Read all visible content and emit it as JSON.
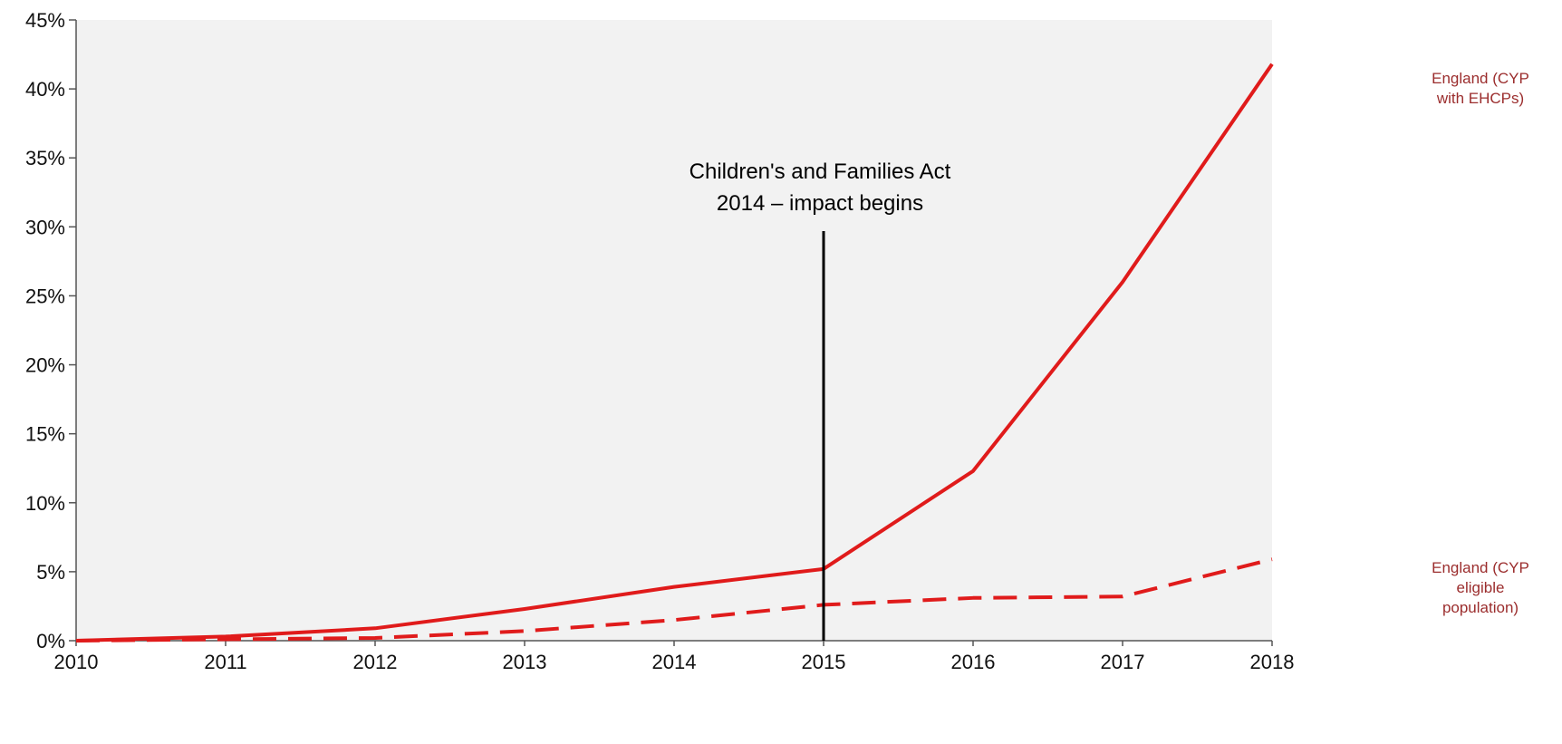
{
  "chart_data": {
    "type": "line",
    "x": [
      2010,
      2011,
      2012,
      2013,
      2014,
      2015,
      2016,
      2017,
      2018
    ],
    "xlim": [
      2010,
      2018
    ],
    "ylim": [
      0,
      45
    ],
    "y_ticks": [
      0,
      5,
      10,
      15,
      20,
      25,
      30,
      35,
      40,
      45
    ],
    "y_tick_labels": [
      "0%",
      "5%",
      "10%",
      "15%",
      "20%",
      "25%",
      "30%",
      "35%",
      "40%",
      "45%"
    ],
    "x_tick_labels": [
      "2010",
      "2011",
      "2012",
      "2013",
      "2014",
      "2015",
      "2016",
      "2017",
      "2018"
    ],
    "grid": false,
    "series": [
      {
        "label_lines": [
          "England (CYP",
          "with EHCPs)"
        ],
        "values": [
          0,
          0.3,
          0.9,
          2.3,
          3.9,
          5.2,
          12.3,
          26.0,
          41.8
        ],
        "style": "solid",
        "color": "#e01b1b"
      },
      {
        "label_lines": [
          "England (CYP",
          "eligible",
          "population)"
        ],
        "values": [
          0,
          0.1,
          0.2,
          0.7,
          1.5,
          2.6,
          3.1,
          3.2,
          5.9
        ],
        "style": "dashed",
        "color": "#e01b1b"
      }
    ],
    "annotation": {
      "x": 2015,
      "text_lines": [
        "Children's and Families Act",
        "2014 – impact begins"
      ]
    },
    "colors": {
      "plot_background": "#f2f2f2",
      "axis": "#555555",
      "label_text": "#9b2d2d",
      "annotation_line": "#000000"
    }
  }
}
